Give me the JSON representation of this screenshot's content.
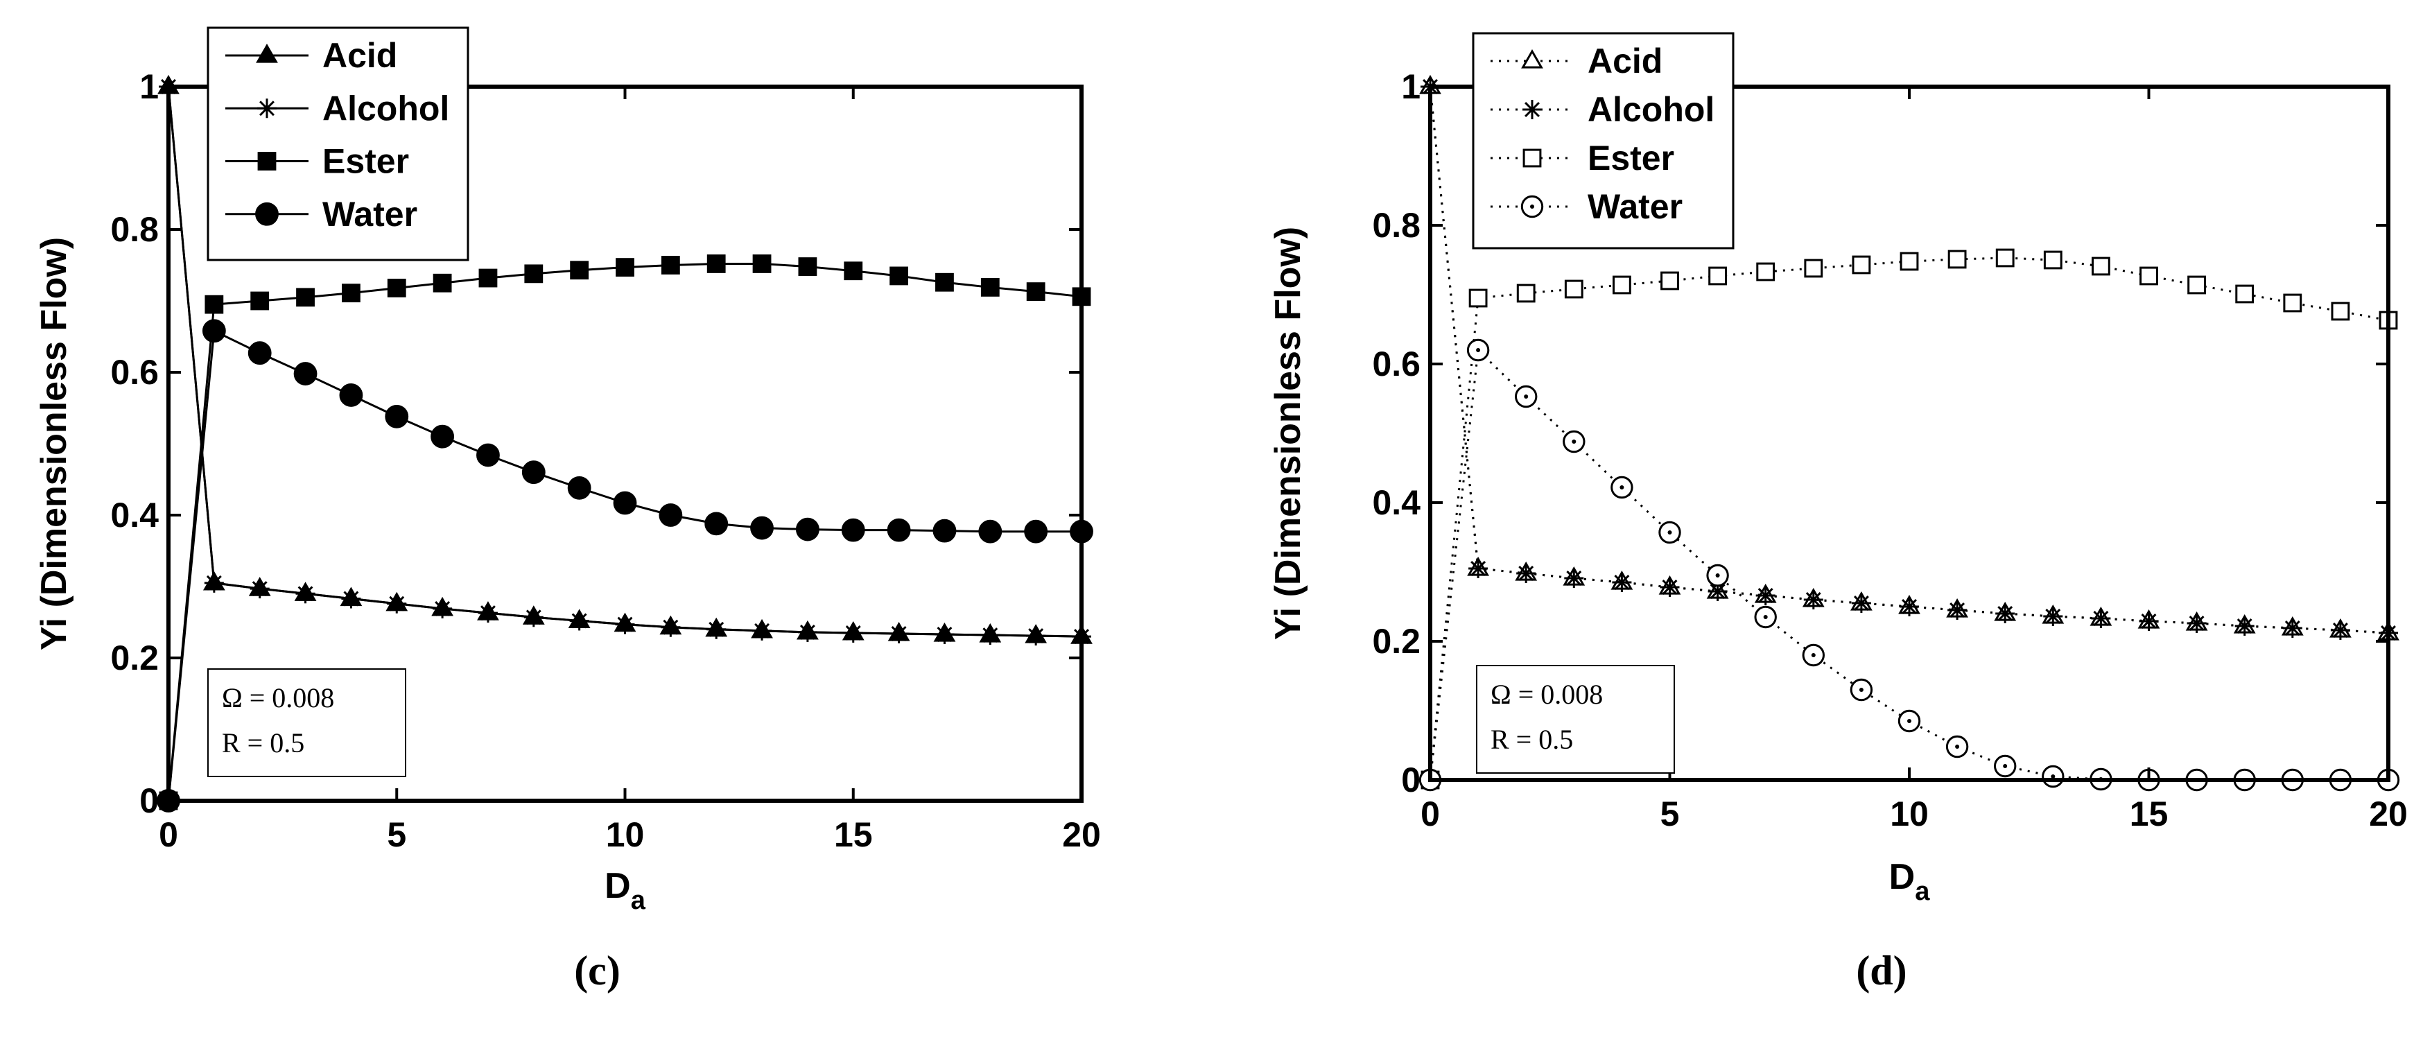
{
  "chart_data": [
    {
      "type": "line",
      "panel_label": "(c)",
      "xlabel": "D",
      "xlabel_sub": "a",
      "ylabel": "Yi (Dimensionless Flow)",
      "xlim": [
        0,
        20
      ],
      "ylim": [
        0,
        1
      ],
      "xticks": [
        0,
        5,
        10,
        15,
        20
      ],
      "yticks": [
        0,
        0.2,
        0.4,
        0.6,
        0.8,
        1
      ],
      "ytick_labels": [
        "0",
        "0.2",
        "0.4",
        "0.6",
        "0.8",
        "1"
      ],
      "legend_position": "top-left",
      "annotation": [
        "Ω = 0.008",
        "R = 0.5"
      ],
      "line_style": "solid",
      "x": [
        0,
        1,
        2,
        3,
        4,
        5,
        6,
        7,
        8,
        9,
        10,
        11,
        12,
        13,
        14,
        15,
        16,
        17,
        18,
        19,
        20
      ],
      "series": [
        {
          "name": "Acid",
          "marker": "triangle-filled",
          "values": [
            1,
            0.305,
            0.297,
            0.29,
            0.283,
            0.276,
            0.269,
            0.263,
            0.257,
            0.252,
            0.247,
            0.243,
            0.24,
            0.238,
            0.236,
            0.235,
            0.234,
            0.233,
            0.232,
            0.231,
            0.23
          ]
        },
        {
          "name": "Alcohol",
          "marker": "star",
          "values": [
            1,
            0.305,
            0.297,
            0.29,
            0.283,
            0.276,
            0.269,
            0.263,
            0.257,
            0.252,
            0.247,
            0.243,
            0.24,
            0.238,
            0.236,
            0.235,
            0.234,
            0.233,
            0.232,
            0.231,
            0.23
          ]
        },
        {
          "name": "Ester",
          "marker": "square-filled",
          "values": [
            0,
            0.695,
            0.7,
            0.705,
            0.711,
            0.718,
            0.725,
            0.732,
            0.738,
            0.743,
            0.747,
            0.75,
            0.752,
            0.752,
            0.748,
            0.742,
            0.735,
            0.726,
            0.719,
            0.713,
            0.706
          ]
        },
        {
          "name": "Water",
          "marker": "circle-filled",
          "values": [
            0,
            0.658,
            0.627,
            0.598,
            0.568,
            0.538,
            0.51,
            0.484,
            0.46,
            0.438,
            0.417,
            0.4,
            0.388,
            0.382,
            0.38,
            0.379,
            0.379,
            0.378,
            0.377,
            0.377,
            0.377
          ]
        }
      ]
    },
    {
      "type": "line",
      "panel_label": "(d)",
      "xlabel": "D",
      "xlabel_sub": "a",
      "ylabel": "Yi  (Dimensionless Flow)",
      "xlim": [
        0,
        20
      ],
      "ylim": [
        0,
        1
      ],
      "xticks": [
        0,
        5,
        10,
        15,
        20
      ],
      "yticks": [
        0,
        0.2,
        0.4,
        0.6,
        0.8,
        1
      ],
      "ytick_labels": [
        "0",
        "0.2",
        "0.4",
        "0.6",
        "0.8",
        "1"
      ],
      "legend_position": "top-left",
      "annotation": [
        "Ω = 0.008",
        "R = 0.5"
      ],
      "line_style": "dotted",
      "x": [
        0,
        1,
        2,
        3,
        4,
        5,
        6,
        7,
        8,
        9,
        10,
        11,
        12,
        13,
        14,
        15,
        16,
        17,
        18,
        19,
        20
      ],
      "series": [
        {
          "name": "Acid",
          "marker": "triangle-open",
          "values": [
            1,
            0.305,
            0.298,
            0.291,
            0.285,
            0.278,
            0.272,
            0.266,
            0.26,
            0.255,
            0.25,
            0.245,
            0.24,
            0.236,
            0.233,
            0.229,
            0.226,
            0.222,
            0.219,
            0.216,
            0.212
          ]
        },
        {
          "name": "Alcohol",
          "marker": "star",
          "values": [
            1,
            0.305,
            0.298,
            0.291,
            0.285,
            0.278,
            0.272,
            0.266,
            0.26,
            0.255,
            0.25,
            0.245,
            0.24,
            0.236,
            0.233,
            0.229,
            0.226,
            0.222,
            0.219,
            0.216,
            0.212
          ]
        },
        {
          "name": "Ester",
          "marker": "square-open",
          "values": [
            0,
            0.695,
            0.702,
            0.708,
            0.714,
            0.72,
            0.727,
            0.733,
            0.738,
            0.743,
            0.748,
            0.751,
            0.753,
            0.75,
            0.741,
            0.727,
            0.714,
            0.701,
            0.688,
            0.676,
            0.663
          ]
        },
        {
          "name": "Water",
          "marker": "circle-open",
          "values": [
            0,
            0.62,
            0.553,
            0.488,
            0.422,
            0.357,
            0.295,
            0.235,
            0.18,
            0.13,
            0.085,
            0.048,
            0.02,
            0.005,
            0.001,
            0,
            0,
            0,
            0,
            0,
            0
          ]
        }
      ]
    }
  ]
}
